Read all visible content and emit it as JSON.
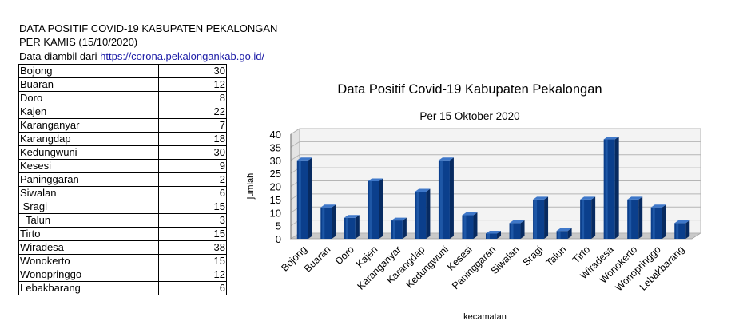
{
  "header": {
    "line1": "DATA POSITIF COVID-19 KABUPATEN PEKALONGAN",
    "line2": "PER KAMIS (15/10/2020)",
    "source_prefix": "Data diambil dari ",
    "source_link": "https://corona.pekalongankab.go.id/"
  },
  "table": {
    "rows": [
      {
        "name": "Bojong",
        "value": "30"
      },
      {
        "name": "Buaran",
        "value": "12"
      },
      {
        "name": "Doro",
        "value": "8"
      },
      {
        "name": "Kajen",
        "value": "22"
      },
      {
        "name": "Karanganyar",
        "value": "7"
      },
      {
        "name": "Karangdap",
        "value": "18"
      },
      {
        "name": "Kedungwuni",
        "value": "30"
      },
      {
        "name": "Kesesi",
        "value": "9"
      },
      {
        "name": "Paninggaran",
        "value": "2"
      },
      {
        "name": "Siwalan",
        "value": "6"
      },
      {
        "name": " Sragi",
        "value": "15"
      },
      {
        "name": "  Talun",
        "value": "3"
      },
      {
        "name": "Tirto",
        "value": "15"
      },
      {
        "name": "Wiradesa",
        "value": "38"
      },
      {
        "name": "Wonokerto",
        "value": "15"
      },
      {
        "name": "Wonopringgo",
        "value": "12"
      },
      {
        "name": "Lebakbarang",
        "value": "6"
      }
    ]
  },
  "chart_data": {
    "type": "bar",
    "title": "Data Positif Covid-19 Kabupaten Pekalongan",
    "subtitle": "Per 15 Oktober 2020",
    "xlabel": "kecamatan",
    "ylabel": "jumlah",
    "categories": [
      "Bojong",
      "Buaran",
      "Doro",
      "Kajen",
      "Karanganyar",
      "Karangdap",
      "Kedungwuni",
      "Kesesi",
      "Paninggaran",
      "Siwalan",
      "Sragi",
      "Talun",
      "Tirto",
      "Wiradesa",
      "Wonokerto",
      "Wonopringgo",
      "Lebakbarang"
    ],
    "values": [
      30,
      12,
      8,
      22,
      7,
      18,
      30,
      9,
      2,
      6,
      15,
      3,
      15,
      38,
      15,
      12,
      6
    ],
    "ylim": [
      0,
      40
    ],
    "yticks": [
      0,
      5,
      10,
      15,
      20,
      25,
      30,
      35,
      40
    ],
    "grid": true,
    "legend": "none",
    "colors": {
      "bar": "#0b3f8c",
      "bar_light": "#2c67b8",
      "bar_top": "#3f78c9",
      "grid": "#b5b5b5",
      "wall": "#f3f3f3"
    }
  }
}
